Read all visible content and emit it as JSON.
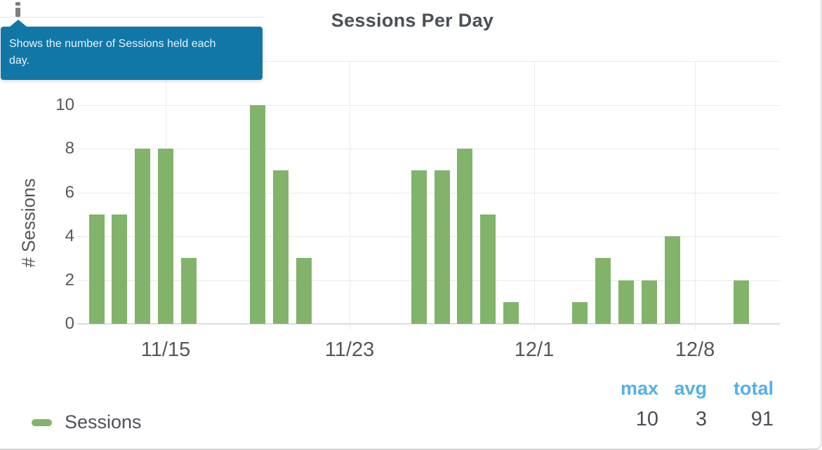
{
  "widget": {
    "title": "Sessions Per Day",
    "tooltip": {
      "text": "Shows the number of Sessions held each day."
    },
    "legend": {
      "label": "Sessions"
    },
    "stats": {
      "columns": [
        {
          "label": "max",
          "value": "10"
        },
        {
          "label": "avg",
          "value": "3"
        },
        {
          "label": "total",
          "value": "91"
        }
      ]
    }
  },
  "chart_data": {
    "type": "bar",
    "title": "Sessions Per Day",
    "xlabel": "",
    "ylabel": "# Sessions",
    "categories": [
      "11/12",
      "11/13",
      "11/14",
      "11/15",
      "11/16",
      "11/17",
      "11/18",
      "11/19",
      "11/20",
      "11/21",
      "11/22",
      "11/23",
      "11/24",
      "11/25",
      "11/26",
      "11/27",
      "11/28",
      "11/29",
      "11/30",
      "12/1",
      "12/2",
      "12/3",
      "12/4",
      "12/5",
      "12/6",
      "12/7",
      "12/8",
      "12/9",
      "12/10"
    ],
    "series": [
      {
        "name": "Sessions",
        "values": [
          5,
          5,
          8,
          8,
          3,
          0,
          0,
          10,
          7,
          3,
          0,
          0,
          0,
          0,
          7,
          7,
          8,
          5,
          1,
          0,
          0,
          1,
          3,
          2,
          2,
          4,
          0,
          0,
          2
        ]
      }
    ],
    "x_axis_tick_labels": [
      "11/15",
      "11/23",
      "12/1",
      "12/8"
    ],
    "y_axis_ticks": [
      0,
      2,
      4,
      6,
      8,
      10
    ],
    "ylim": [
      0,
      12
    ],
    "grid": true,
    "legend_position": "bottom-left",
    "bar_color": "#81b46a",
    "stats": {
      "max": 10,
      "avg": 3,
      "total": 91
    }
  },
  "colors": {
    "bar_green": "#81b46a",
    "tooltip_teal": "#1177a7",
    "stats_header_blue": "#52b1e8",
    "title_text": "#4b4f58",
    "axis_text": "#55575c",
    "gridline": "#e9e9e9"
  }
}
